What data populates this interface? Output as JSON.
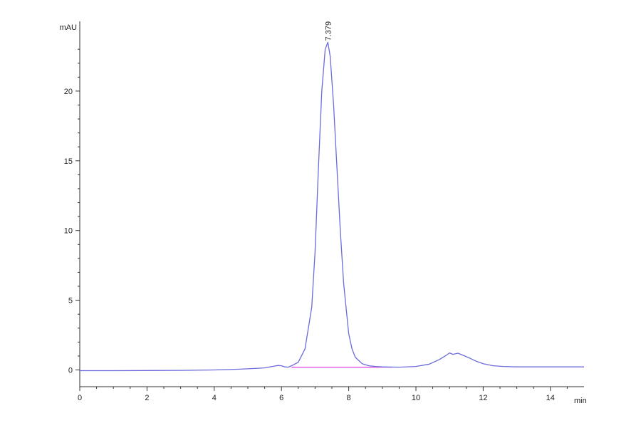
{
  "chart_data": {
    "type": "line",
    "title": "",
    "xlabel": "min",
    "ylabel": "mAU",
    "xlim": [
      0,
      15
    ],
    "ylim": [
      -1.2,
      25
    ],
    "x_ticks": [
      0,
      2,
      4,
      6,
      8,
      10,
      12,
      14
    ],
    "y_ticks": [
      0,
      5,
      10,
      15,
      20
    ],
    "grid": false,
    "series": [
      {
        "color": "#6b6bdc",
        "x": [
          0,
          1,
          2,
          3,
          4,
          4.5,
          5,
          5.5,
          5.8,
          5.9,
          6.0,
          6.1,
          6.2,
          6.3,
          6.5,
          6.7,
          6.9,
          7.0,
          7.1,
          7.2,
          7.3,
          7.379,
          7.45,
          7.55,
          7.65,
          7.75,
          7.85,
          8.0,
          8.1,
          8.2,
          8.4,
          8.6,
          8.8,
          9.0,
          9.5,
          10.0,
          10.4,
          10.7,
          10.9,
          11.0,
          11.1,
          11.25,
          11.4,
          11.6,
          11.8,
          12.0,
          12.3,
          12.6,
          13.0,
          14.0,
          15.0
        ],
        "y": [
          -0.05,
          -0.05,
          -0.04,
          -0.03,
          0.0,
          0.03,
          0.08,
          0.15,
          0.28,
          0.32,
          0.3,
          0.22,
          0.2,
          0.3,
          0.55,
          1.5,
          4.5,
          8.5,
          14.5,
          20.0,
          23.0,
          23.5,
          22.5,
          19.0,
          14.5,
          10.0,
          6.2,
          2.6,
          1.5,
          0.9,
          0.45,
          0.3,
          0.25,
          0.22,
          0.2,
          0.25,
          0.42,
          0.75,
          1.05,
          1.22,
          1.12,
          1.2,
          1.05,
          0.85,
          0.62,
          0.45,
          0.3,
          0.25,
          0.22,
          0.22,
          0.22
        ]
      }
    ],
    "baseline": {
      "color": "#e23ee2",
      "x": [
        6.3,
        9.3
      ],
      "y": [
        0.2,
        0.2
      ]
    },
    "annotations": [
      {
        "text": "7.379",
        "x": 7.379,
        "y": 23.5
      }
    ]
  }
}
